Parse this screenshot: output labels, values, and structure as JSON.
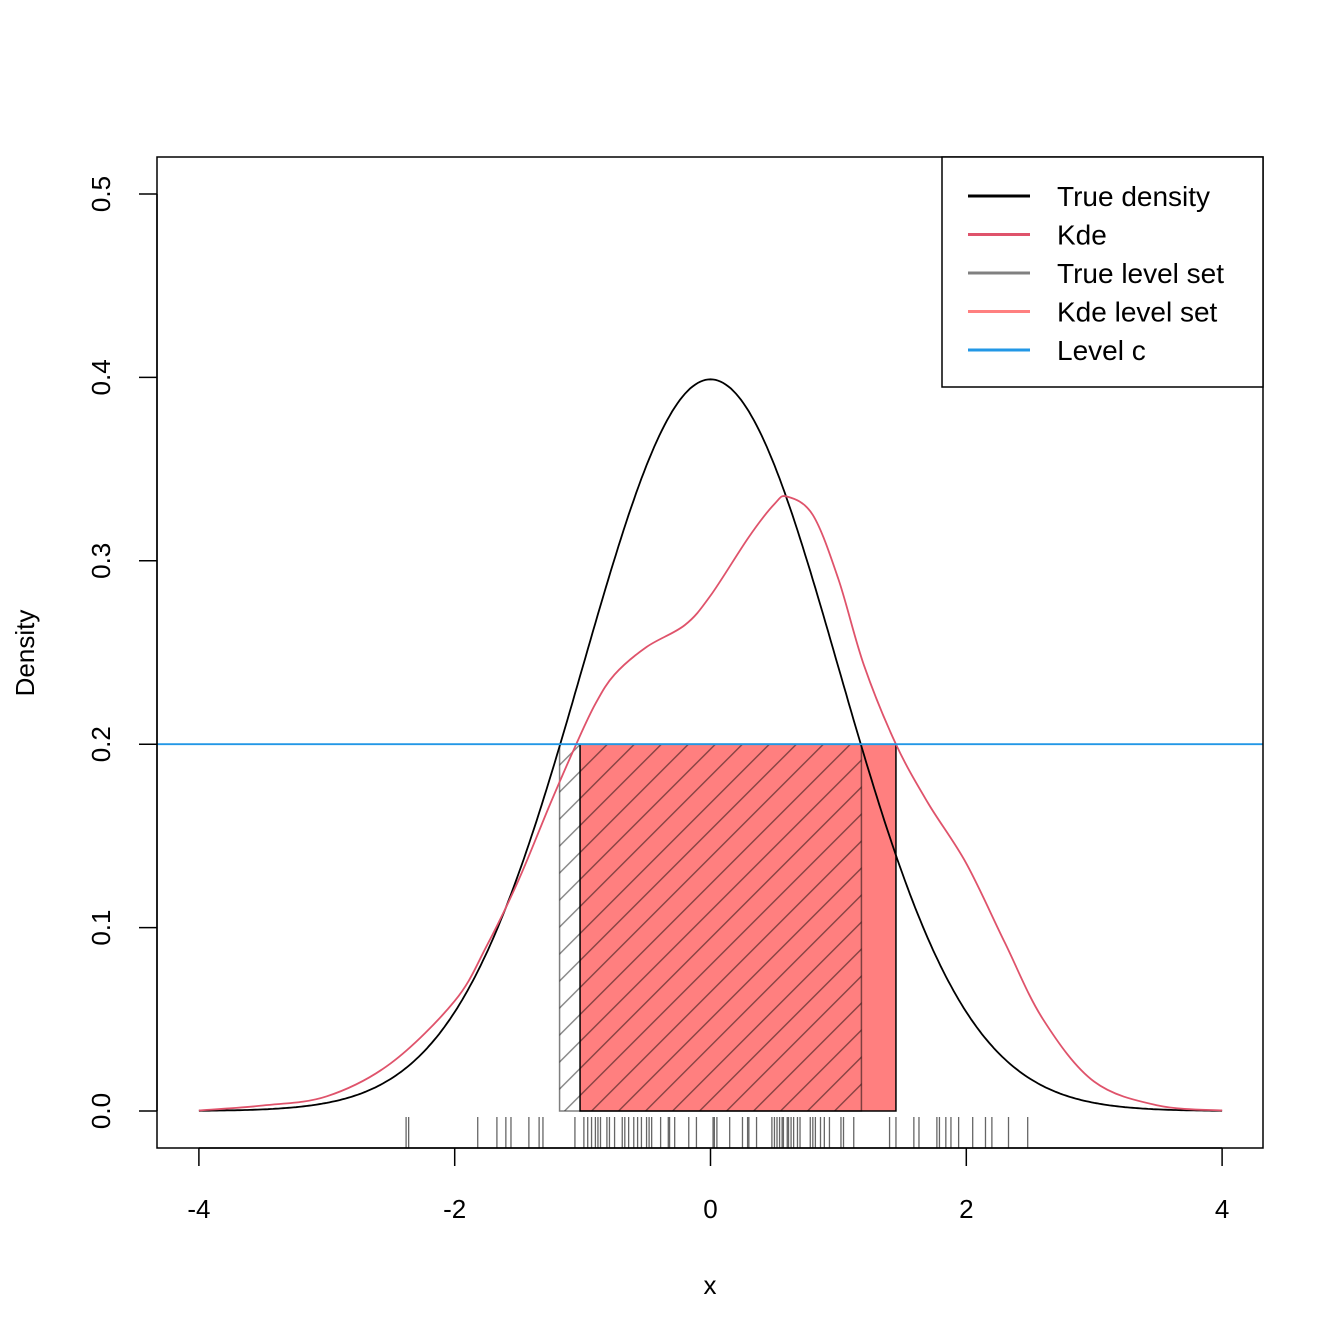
{
  "chart_data": {
    "type": "line",
    "title": "",
    "xlabel": "x",
    "ylabel": "Density",
    "xlim": [
      -4,
      4
    ],
    "ylim": [
      0,
      0.5
    ],
    "x_ticks": [
      "-4",
      "-2",
      "0",
      "2",
      "4"
    ],
    "y_ticks": [
      "0.0",
      "0.1",
      "0.2",
      "0.3",
      "0.4",
      "0.5"
    ],
    "grid": false,
    "legend_position": "top-right",
    "legend": [
      {
        "label": "True density",
        "color": "#000000"
      },
      {
        "label": "Kde",
        "color": "#DF536B"
      },
      {
        "label": "True level set",
        "color": "#808080"
      },
      {
        "label": "Kde level set",
        "color": "#FF8080"
      },
      {
        "label": "Level c",
        "color": "#2297E6"
      }
    ],
    "series": [
      {
        "name": "True density",
        "kind": "normal",
        "mean": 0,
        "sd": 1,
        "color": "#000000"
      },
      {
        "name": "Kde",
        "color": "#DF536B",
        "x": [
          -4,
          -3.5,
          -3,
          -2.5,
          -2,
          -1.75,
          -1.5,
          -1.25,
          -1.05,
          -0.9,
          -0.75,
          -0.5,
          -0.2,
          0,
          0.3,
          0.5,
          0.6,
          0.8,
          1.0,
          1.2,
          1.45,
          1.7,
          2.0,
          2.3,
          2.6,
          3.0,
          3.5,
          4
        ],
        "y": [
          0.0003,
          0.003,
          0.008,
          0.026,
          0.06,
          0.09,
          0.126,
          0.168,
          0.2,
          0.222,
          0.238,
          0.253,
          0.265,
          0.281,
          0.313,
          0.331,
          0.335,
          0.325,
          0.29,
          0.243,
          0.2,
          0.168,
          0.135,
          0.092,
          0.05,
          0.016,
          0.003,
          0.0003
        ]
      }
    ],
    "level_c": 0.2,
    "true_level_set": [
      -1.18,
      1.18
    ],
    "kde_level_set": [
      -1.02,
      1.45
    ],
    "rug": [
      -2.38,
      -2.36,
      -1.82,
      -1.67,
      -1.6,
      -1.56,
      -1.42,
      -1.34,
      -1.31,
      -1.06,
      -0.99,
      -0.96,
      -0.93,
      -0.9,
      -0.88,
      -0.86,
      -0.81,
      -0.79,
      -0.75,
      -0.69,
      -0.67,
      -0.64,
      -0.6,
      -0.57,
      -0.54,
      -0.5,
      -0.48,
      -0.46,
      -0.39,
      -0.33,
      -0.32,
      -0.28,
      -0.17,
      -0.11,
      0.02,
      0.03,
      0.05,
      0.15,
      0.25,
      0.29,
      0.3,
      0.36,
      0.48,
      0.5,
      0.52,
      0.54,
      0.56,
      0.57,
      0.6,
      0.61,
      0.63,
      0.65,
      0.68,
      0.7,
      0.78,
      0.8,
      0.82,
      0.86,
      0.89,
      0.93,
      1.02,
      1.04,
      1.12,
      1.4,
      1.45,
      1.59,
      1.63,
      1.77,
      1.79,
      1.84,
      1.88,
      1.94,
      2.05,
      2.15,
      2.2,
      2.33,
      2.48
    ]
  }
}
